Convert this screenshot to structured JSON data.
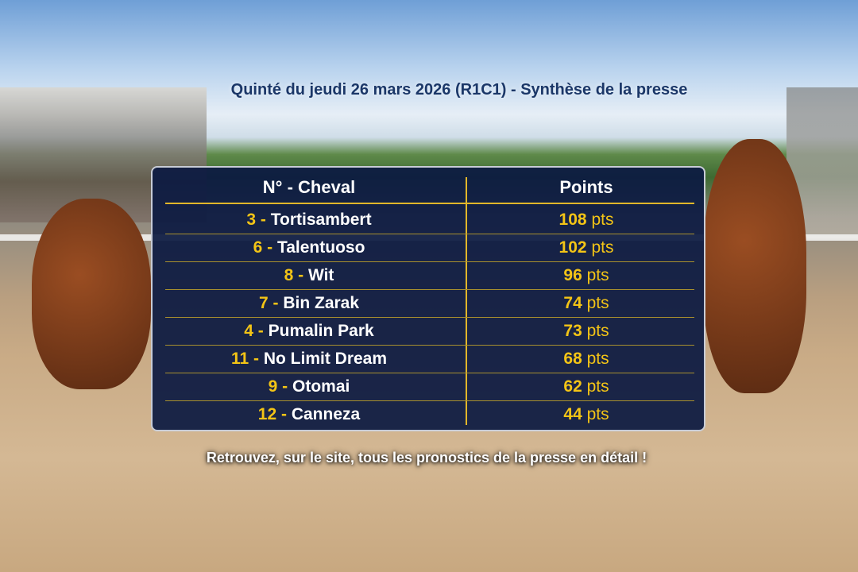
{
  "title": "Quinté du jeudi 26 mars 2026 (R1C1) - Synthèse de la presse",
  "table": {
    "headers": [
      "N° - Cheval",
      "Points"
    ],
    "rows": [
      {
        "num": "3",
        "name": "Tortisambert",
        "points": "108",
        "unit": "pts"
      },
      {
        "num": "6",
        "name": "Talentuoso",
        "points": "102",
        "unit": "pts"
      },
      {
        "num": "8",
        "name": "Wit",
        "points": "96",
        "unit": "pts"
      },
      {
        "num": "7",
        "name": "Bin Zarak",
        "points": "74",
        "unit": "pts"
      },
      {
        "num": "4",
        "name": "Pumalin Park",
        "points": "73",
        "unit": "pts"
      },
      {
        "num": "11",
        "name": "No Limit Dream",
        "points": "68",
        "unit": "pts"
      },
      {
        "num": "9",
        "name": "Otomai",
        "points": "62",
        "unit": "pts"
      },
      {
        "num": "12",
        "name": "Canneza",
        "points": "44",
        "unit": "pts"
      }
    ],
    "separator": " - "
  },
  "footer": "Retrouvez, sur le site, tous les pronostics de la presse en détail !",
  "colors": {
    "panel": "#0c1a42",
    "accent": "#f3c416",
    "title": "#1b3768"
  }
}
